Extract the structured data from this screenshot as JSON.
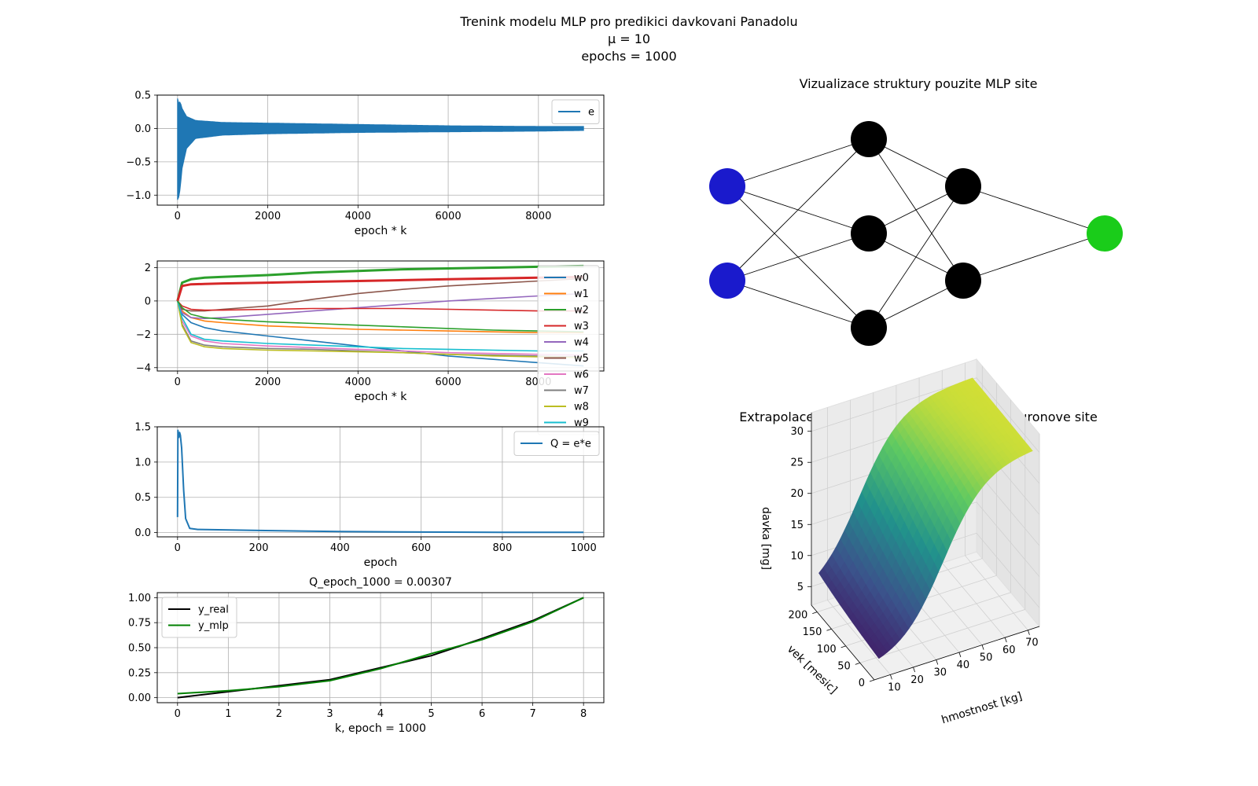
{
  "figure": {
    "title_lines": [
      "Trenink modelu MLP pro predikici davkovani Panadolu",
      "μ = 10",
      "epochs = 1000"
    ]
  },
  "chart_data": [
    {
      "id": "error",
      "type": "line",
      "xlabel": "epoch * k",
      "ylabel": "",
      "xlim": [
        -450,
        9450
      ],
      "ylim": [
        -1.15,
        0.5
      ],
      "xticks": [
        0,
        2000,
        4000,
        6000,
        8000
      ],
      "yticks": [
        0.5,
        0.0,
        -0.5,
        -1.0
      ],
      "ytick_labels": [
        "0.5",
        "0.0",
        "−0.5",
        "−1.0"
      ],
      "grid": true,
      "legend": "upper right",
      "series": [
        {
          "name": "e",
          "color": "#1f77b4",
          "envelope": {
            "x": [
              0,
              20,
              60,
              100,
              200,
              400,
              1000,
              2000,
              4000,
              6000,
              8000,
              9000
            ],
            "upper": [
              0.45,
              0.38,
              0.4,
              0.3,
              0.18,
              0.12,
              0.09,
              0.08,
              0.06,
              0.04,
              0.03,
              0.03
            ],
            "lower": [
              -1.07,
              -1.05,
              -0.9,
              -0.6,
              -0.3,
              -0.15,
              -0.1,
              -0.08,
              -0.06,
              -0.05,
              -0.04,
              -0.03
            ]
          }
        }
      ]
    },
    {
      "id": "weights",
      "type": "line",
      "xlabel": "epoch * k",
      "ylabel": "",
      "xlim": [
        -450,
        9450
      ],
      "ylim": [
        -4.2,
        2.4
      ],
      "xticks": [
        0,
        2000,
        4000,
        6000,
        8000
      ],
      "yticks": [
        2,
        0,
        -2,
        -4
      ],
      "ytick_labels": [
        "2",
        "0",
        "−2",
        "−4"
      ],
      "grid": true,
      "legend": "upper right",
      "x": [
        0,
        100,
        300,
        600,
        1000,
        2000,
        3000,
        4000,
        5000,
        6000,
        7000,
        8000,
        9000
      ],
      "series": [
        {
          "name": "w0",
          "color": "#1f77b4",
          "values": [
            0,
            -0.8,
            -1.3,
            -1.6,
            -1.8,
            -2.1,
            -2.4,
            -2.7,
            -3.0,
            -3.3,
            -3.5,
            -3.7,
            -3.9
          ]
        },
        {
          "name": "w1",
          "color": "#ff7f0e",
          "values": [
            0,
            -0.6,
            -1.0,
            -1.2,
            -1.3,
            -1.5,
            -1.6,
            -1.7,
            -1.75,
            -1.8,
            -1.85,
            -1.9,
            -1.9
          ]
        },
        {
          "name": "w2",
          "color": "#2ca02c",
          "values": [
            0,
            1.1,
            1.3,
            1.4,
            1.45,
            1.55,
            1.7,
            1.8,
            1.9,
            1.95,
            2.0,
            2.05,
            2.1
          ]
        },
        {
          "name": "w3",
          "color": "#d62728",
          "values": [
            0,
            0.9,
            1.0,
            1.02,
            1.05,
            1.1,
            1.15,
            1.2,
            1.25,
            1.3,
            1.35,
            1.4,
            1.45
          ]
        },
        {
          "name": "w4",
          "color": "#9467bd",
          "values": [
            0,
            -0.7,
            -1.0,
            -1.05,
            -1.0,
            -0.8,
            -0.6,
            -0.4,
            -0.2,
            0.0,
            0.15,
            0.3,
            0.45
          ]
        },
        {
          "name": "w5",
          "color": "#8c564b",
          "values": [
            0,
            -0.5,
            -0.6,
            -0.6,
            -0.5,
            -0.3,
            0.1,
            0.45,
            0.7,
            0.9,
            1.05,
            1.2,
            1.35
          ]
        },
        {
          "name": "w6",
          "color": "#e377c2",
          "values": [
            0,
            -1.2,
            -2.1,
            -2.4,
            -2.55,
            -2.7,
            -2.8,
            -2.9,
            -3.0,
            -3.1,
            -3.15,
            -3.2,
            -3.25
          ]
        },
        {
          "name": "w7",
          "color": "#7f7f7f",
          "values": [
            0,
            -1.4,
            -2.4,
            -2.65,
            -2.75,
            -2.85,
            -2.9,
            -3.0,
            -3.1,
            -3.2,
            -3.25,
            -3.3,
            -3.35
          ]
        },
        {
          "name": "w8",
          "color": "#bcbd22",
          "values": [
            0,
            -1.5,
            -2.5,
            -2.75,
            -2.85,
            -2.95,
            -3.0,
            -3.05,
            -3.1,
            -3.2,
            -3.3,
            -3.35,
            -3.4
          ]
        },
        {
          "name": "w9",
          "color": "#17becf",
          "values": [
            0,
            -1.0,
            -2.0,
            -2.3,
            -2.4,
            -2.55,
            -2.65,
            -2.75,
            -2.85,
            -2.9,
            -2.95,
            -3.0,
            -3.0
          ]
        },
        {
          "name": "",
          "color": "#d62728",
          "values": [
            0,
            -0.3,
            -0.5,
            -0.55,
            -0.55,
            -0.5,
            -0.45,
            -0.45,
            -0.45,
            -0.5,
            -0.55,
            -0.6,
            -0.6
          ]
        },
        {
          "name": "",
          "color": "#2ca02c",
          "values": [
            0,
            -0.4,
            -0.8,
            -1.0,
            -1.1,
            -1.25,
            -1.35,
            -1.45,
            -1.55,
            -1.65,
            -1.75,
            -1.8,
            -1.85
          ]
        }
      ]
    },
    {
      "id": "Q",
      "type": "line",
      "xlabel": "epoch",
      "ylabel": "",
      "xlim": [
        -50,
        1050
      ],
      "ylim": [
        -0.06,
        1.5
      ],
      "xticks": [
        0,
        200,
        400,
        600,
        800,
        1000
      ],
      "yticks": [
        0.0,
        0.5,
        1.0,
        1.5
      ],
      "ytick_labels": [
        "0.0",
        "0.5",
        "1.0",
        "1.5"
      ],
      "grid": true,
      "legend": "upper right",
      "x": [
        0,
        1,
        3,
        5,
        7,
        10,
        15,
        20,
        30,
        50,
        100,
        200,
        400,
        600,
        800,
        1000
      ],
      "series": [
        {
          "name": "Q = e*e",
          "color": "#1f77b4",
          "values": [
            0.22,
            1.45,
            1.35,
            1.42,
            1.38,
            1.2,
            0.6,
            0.2,
            0.06,
            0.045,
            0.04,
            0.03,
            0.015,
            0.008,
            0.005,
            0.003
          ]
        }
      ]
    },
    {
      "id": "fit",
      "type": "line",
      "title": "Q_epoch_1000 = 0.00307",
      "xlabel": "k, epoch = 1000",
      "ylabel": "",
      "xlim": [
        -0.4,
        8.4
      ],
      "ylim": [
        -0.05,
        1.05
      ],
      "xticks": [
        0,
        1,
        2,
        3,
        4,
        5,
        6,
        7,
        8
      ],
      "yticks": [
        0.0,
        0.25,
        0.5,
        0.75,
        1.0
      ],
      "ytick_labels": [
        "0.00",
        "0.25",
        "0.50",
        "0.75",
        "1.00"
      ],
      "grid": true,
      "legend": "upper left",
      "x": [
        0,
        1,
        2,
        3,
        4,
        5,
        6,
        7,
        8
      ],
      "series": [
        {
          "name": "y_real",
          "color": "#000000",
          "values": [
            0.0,
            0.06,
            0.12,
            0.18,
            0.3,
            0.42,
            0.59,
            0.77,
            1.0
          ]
        },
        {
          "name": "y_mlp",
          "color": "#008000",
          "values": [
            0.04,
            0.07,
            0.11,
            0.17,
            0.29,
            0.44,
            0.58,
            0.76,
            1.0
          ]
        }
      ]
    },
    {
      "id": "network",
      "type": "diagram",
      "title": "Vizualizace struktury pouzite MLP site",
      "layers": [
        2,
        3,
        2,
        1
      ],
      "colors": {
        "input": "#1a1acc",
        "hidden": "#000000",
        "output": "#1acc1a"
      }
    },
    {
      "id": "surface",
      "type": "surface3d",
      "title": "Extrapolace davek panadolu pomoci MLP Neuronove site",
      "xlabel": "hmostnost [kg]",
      "ylabel": "vek [mesic]",
      "zlabel": "davka [mg]",
      "xticks": [
        10,
        20,
        30,
        40,
        50,
        60,
        70
      ],
      "yticks": [
        0,
        50,
        100,
        150,
        200
      ],
      "zticks": [
        5,
        10,
        15,
        20,
        25,
        30
      ],
      "xlim": [
        3,
        75
      ],
      "ylim": [
        0,
        220
      ],
      "zlim": [
        2,
        33
      ],
      "colormap": [
        "#440154",
        "#3b528b",
        "#21918c",
        "#5ec962",
        "#fde725"
      ]
    }
  ]
}
